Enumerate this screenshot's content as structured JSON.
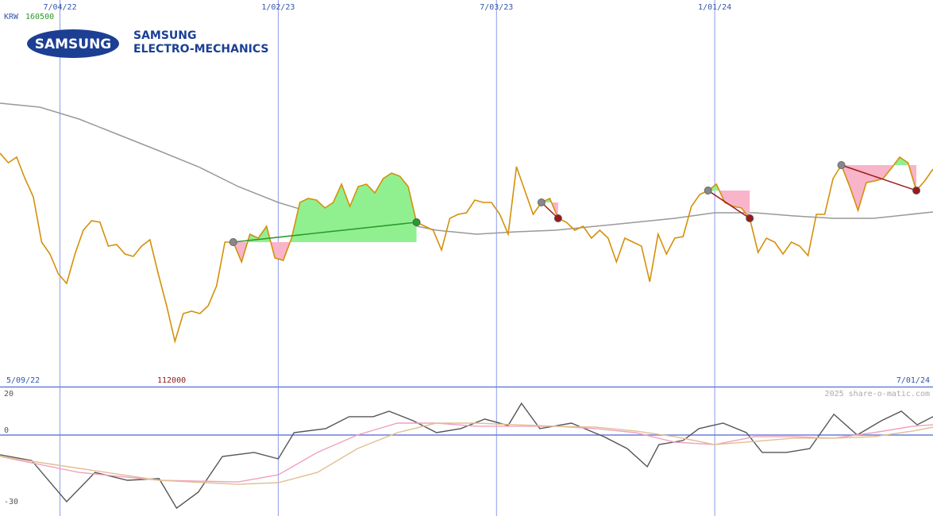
{
  "chart_data": {
    "type": "line",
    "currency": "KRW",
    "high": 160500,
    "low": 112000,
    "start_date": "5/09/22",
    "end_date": "7/01/24",
    "credit": "2025 share-o-matic.com",
    "logo": {
      "badge": "SAMSUNG",
      "name_line1": "SAMSUNG",
      "name_line2": "ELECTRO-MECHANICS"
    },
    "xlim": [
      0,
      112
    ],
    "xticks": [
      {
        "value": 7.2,
        "label": "7/04/22"
      },
      {
        "value": 33.4,
        "label": "1/02/23"
      },
      {
        "value": 59.6,
        "label": "7/03/23"
      },
      {
        "value": 85.8,
        "label": "1/01/24"
      }
    ],
    "ylim": [
      100600,
      198000
    ],
    "grid": true,
    "series": [
      {
        "color": "#d4900a",
        "values": [
          159400,
          157000,
          158400,
          153000,
          148400,
          137000,
          134000,
          129000,
          126600,
          134000,
          140000,
          142400,
          142000,
          136000,
          136400,
          134000,
          133400,
          136000,
          137600,
          129000,
          121000,
          112000,
          119000,
          119600,
          119000,
          121000,
          126000,
          137000,
          137000,
          132000,
          139000,
          138000,
          141000,
          133000,
          132400,
          138000,
          147000,
          148000,
          147600,
          145600,
          147000,
          151600,
          146000,
          151000,
          151600,
          149400,
          153000,
          154400,
          153600,
          151000,
          142000,
          141000,
          140000,
          135000,
          143000,
          144000,
          144400,
          147600,
          147000,
          147000,
          144000,
          139000,
          156000,
          150000,
          144000,
          147000,
          148000,
          143000,
          142000,
          140000,
          141000,
          138000,
          140000,
          138000,
          132000,
          138000,
          137000,
          136000,
          127000,
          139000,
          134000,
          138000,
          138400,
          146000,
          149000,
          150000,
          151600,
          147000,
          146000,
          145600,
          143000,
          134400,
          138000,
          137000,
          134000,
          137000,
          136000,
          133600,
          144000,
          144000,
          153000,
          156400,
          151000,
          145000,
          152000,
          152400,
          153000,
          155600,
          158400,
          157000,
          150000,
          152400,
          155400
        ]
      },
      {
        "color": "#999999",
        "x": [
          0,
          4.8,
          9.5,
          14.3,
          19.1,
          23.8,
          28.6,
          33.4,
          38.1,
          42.9,
          47.7,
          52.4,
          57.2,
          62,
          66.7,
          71.5,
          76.3,
          81,
          85.8,
          90.6,
          95.3,
          100.1,
          104.9,
          112
        ],
        "values": [
          172000,
          171000,
          168000,
          164000,
          160000,
          156000,
          151000,
          147000,
          144000,
          142400,
          142000,
          140000,
          139000,
          139600,
          140000,
          141000,
          142000,
          143000,
          144400,
          144400,
          143600,
          143000,
          143000,
          144600
        ]
      }
    ],
    "trades": [
      {
        "start": 28,
        "end": 50,
        "color": "#2a9a2a"
      },
      {
        "start": 65,
        "end": 67,
        "color": "#9a1a1a"
      },
      {
        "start": 85,
        "end": 90,
        "color": "#9a1a1a"
      },
      {
        "start": 101,
        "end": 110,
        "color": "#9a1a1a"
      }
    ],
    "fill_up_color": "#90f090",
    "fill_down_color": "#f8b4c8",
    "oscillator": {
      "ylim": [
        -34,
        20
      ],
      "yticks": [
        20,
        0,
        -30
      ],
      "zero_line": true,
      "series": [
        {
          "color": "#555555",
          "x": [
            0,
            3.8,
            8,
            11.4,
            15.3,
            19.1,
            21.2,
            23.8,
            26.7,
            30.5,
            33.4,
            35.3,
            39.1,
            41.9,
            44.8,
            46.7,
            49.6,
            52.4,
            55.3,
            58.2,
            61,
            62.6,
            64.8,
            68.6,
            72.5,
            75.3,
            77.7,
            79.1,
            82,
            83.9,
            86.8,
            89.6,
            91.5,
            94.4,
            97.2,
            100.1,
            102.9,
            105.8,
            108.2,
            110.1,
            112
          ],
          "values": [
            -8.3,
            -10.7,
            -28,
            -15.7,
            -19,
            -18.3,
            -30.7,
            -24,
            -9,
            -7.3,
            -10,
            1,
            2.7,
            7.7,
            7.7,
            10,
            6,
            1,
            2.7,
            6.7,
            4,
            13.3,
            2.7,
            5,
            -0.7,
            -5.7,
            -13.3,
            -4,
            -2.3,
            2.7,
            5,
            1,
            -7.3,
            -7.3,
            -5.7,
            8.7,
            0,
            6,
            10,
            4.3,
            7.7
          ]
        },
        {
          "color": "#f0a0c0",
          "x": [
            0,
            9.5,
            19.1,
            28.6,
            33.4,
            38.1,
            42.9,
            47.7,
            52.4,
            57.2,
            62,
            66.7,
            71.5,
            76.3,
            81,
            85.8,
            90.6,
            95.3,
            100.1,
            104.9,
            109.6,
            112
          ],
          "values": [
            -9,
            -15.7,
            -19,
            -19.7,
            -16.7,
            -7.3,
            0,
            5,
            5,
            3.7,
            3.7,
            3.7,
            2.7,
            1,
            -3,
            -4,
            -0.7,
            -0.7,
            -1.3,
            1,
            3.7,
            4.3
          ]
        },
        {
          "color": "#e0c090",
          "x": [
            0,
            9.5,
            19.1,
            28.6,
            33.4,
            38.1,
            42.9,
            47.7,
            52.4,
            57.2,
            62,
            66.7,
            71.5,
            76.3,
            81,
            85.8,
            90.6,
            95.3,
            100.1,
            104.9,
            109.6,
            112
          ],
          "values": [
            -9,
            -14,
            -19,
            -20.7,
            -20,
            -15.7,
            -5.7,
            1,
            5,
            5,
            4.3,
            3.7,
            3.3,
            1.7,
            -0.7,
            -4,
            -2.7,
            -1.3,
            -1.3,
            -0.7,
            1.7,
            3.3
          ]
        }
      ]
    }
  }
}
